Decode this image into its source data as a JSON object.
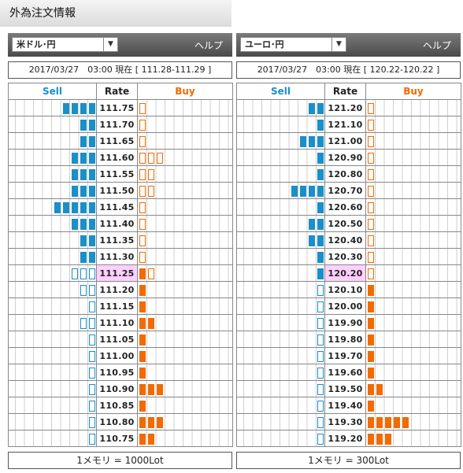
{
  "page_title": "外為注文情報",
  "colors": {
    "sell": "#1a8fc8",
    "buy": "#f26a00",
    "current_rate_bg": "#ffd0ff"
  },
  "panels": [
    {
      "pair": "米ドル･円",
      "help": "ヘルプ",
      "info": "2017/03/27　03:00 現在 [ 111.28-111.29 ]",
      "headers": {
        "sell": "Sell",
        "rate": "Rate",
        "buy": "Buy"
      },
      "current_rate": "111.25",
      "rows": [
        {
          "rate": "111.75",
          "sell": 4,
          "sell_open": 0,
          "buy": 0,
          "buy_open": 1
        },
        {
          "rate": "111.70",
          "sell": 2,
          "sell_open": 0,
          "buy": 0,
          "buy_open": 1
        },
        {
          "rate": "111.65",
          "sell": 2,
          "sell_open": 0,
          "buy": 0,
          "buy_open": 1
        },
        {
          "rate": "111.60",
          "sell": 3,
          "sell_open": 0,
          "buy": 0,
          "buy_open": 3
        },
        {
          "rate": "111.55",
          "sell": 3,
          "sell_open": 0,
          "buy": 0,
          "buy_open": 2
        },
        {
          "rate": "111.50",
          "sell": 3,
          "sell_open": 0,
          "buy": 0,
          "buy_open": 2
        },
        {
          "rate": "111.45",
          "sell": 5,
          "sell_open": 0,
          "buy": 0,
          "buy_open": 1
        },
        {
          "rate": "111.40",
          "sell": 3,
          "sell_open": 0,
          "buy": 0,
          "buy_open": 1
        },
        {
          "rate": "111.35",
          "sell": 2,
          "sell_open": 0,
          "buy": 0,
          "buy_open": 1
        },
        {
          "rate": "111.30",
          "sell": 2,
          "sell_open": 0,
          "buy": 0,
          "buy_open": 1
        },
        {
          "rate": "111.25",
          "sell": 0,
          "sell_open": 3,
          "buy": 1,
          "buy_open": 1
        },
        {
          "rate": "111.20",
          "sell": 0,
          "sell_open": 2,
          "buy": 1,
          "buy_open": 0
        },
        {
          "rate": "111.15",
          "sell": 0,
          "sell_open": 1,
          "buy": 1,
          "buy_open": 0
        },
        {
          "rate": "111.10",
          "sell": 0,
          "sell_open": 2,
          "buy": 2,
          "buy_open": 0
        },
        {
          "rate": "111.05",
          "sell": 0,
          "sell_open": 1,
          "buy": 1,
          "buy_open": 0
        },
        {
          "rate": "111.00",
          "sell": 0,
          "sell_open": 1,
          "buy": 1,
          "buy_open": 0
        },
        {
          "rate": "110.95",
          "sell": 0,
          "sell_open": 1,
          "buy": 1,
          "buy_open": 0
        },
        {
          "rate": "110.90",
          "sell": 0,
          "sell_open": 1,
          "buy": 3,
          "buy_open": 0
        },
        {
          "rate": "110.85",
          "sell": 0,
          "sell_open": 1,
          "buy": 1,
          "buy_open": 0
        },
        {
          "rate": "110.80",
          "sell": 0,
          "sell_open": 1,
          "buy": 3,
          "buy_open": 0
        },
        {
          "rate": "110.75",
          "sell": 0,
          "sell_open": 1,
          "buy": 2,
          "buy_open": 0
        }
      ],
      "footer": "1メモリ = 1000Lot"
    },
    {
      "pair": "ユーロ･円",
      "help": "ヘルプ",
      "info": "2017/03/27　03:00 現在 [ 120.22-120.22 ]",
      "headers": {
        "sell": "Sell",
        "rate": "Rate",
        "buy": "Buy"
      },
      "current_rate": "120.20",
      "rows": [
        {
          "rate": "121.20",
          "sell": 2,
          "sell_open": 0,
          "buy": 0,
          "buy_open": 1
        },
        {
          "rate": "121.10",
          "sell": 1,
          "sell_open": 0,
          "buy": 0,
          "buy_open": 1
        },
        {
          "rate": "121.00",
          "sell": 3,
          "sell_open": 0,
          "buy": 0,
          "buy_open": 1
        },
        {
          "rate": "120.90",
          "sell": 1,
          "sell_open": 0,
          "buy": 0,
          "buy_open": 1
        },
        {
          "rate": "120.80",
          "sell": 1,
          "sell_open": 0,
          "buy": 0,
          "buy_open": 1
        },
        {
          "rate": "120.70",
          "sell": 4,
          "sell_open": 0,
          "buy": 0,
          "buy_open": 1
        },
        {
          "rate": "120.60",
          "sell": 1,
          "sell_open": 0,
          "buy": 0,
          "buy_open": 1
        },
        {
          "rate": "120.50",
          "sell": 2,
          "sell_open": 0,
          "buy": 0,
          "buy_open": 1
        },
        {
          "rate": "120.40",
          "sell": 2,
          "sell_open": 0,
          "buy": 0,
          "buy_open": 1
        },
        {
          "rate": "120.30",
          "sell": 1,
          "sell_open": 0,
          "buy": 0,
          "buy_open": 1
        },
        {
          "rate": "120.20",
          "sell": 1,
          "sell_open": 0,
          "buy": 0,
          "buy_open": 1
        },
        {
          "rate": "120.10",
          "sell": 0,
          "sell_open": 1,
          "buy": 1,
          "buy_open": 0
        },
        {
          "rate": "120.00",
          "sell": 0,
          "sell_open": 1,
          "buy": 1,
          "buy_open": 0
        },
        {
          "rate": "119.90",
          "sell": 0,
          "sell_open": 1,
          "buy": 1,
          "buy_open": 0
        },
        {
          "rate": "119.80",
          "sell": 0,
          "sell_open": 1,
          "buy": 1,
          "buy_open": 0
        },
        {
          "rate": "119.70",
          "sell": 0,
          "sell_open": 1,
          "buy": 1,
          "buy_open": 0
        },
        {
          "rate": "119.60",
          "sell": 0,
          "sell_open": 1,
          "buy": 1,
          "buy_open": 0
        },
        {
          "rate": "119.50",
          "sell": 0,
          "sell_open": 1,
          "buy": 2,
          "buy_open": 0
        },
        {
          "rate": "119.40",
          "sell": 0,
          "sell_open": 1,
          "buy": 1,
          "buy_open": 0
        },
        {
          "rate": "119.30",
          "sell": 0,
          "sell_open": 1,
          "buy": 5,
          "buy_open": 0
        },
        {
          "rate": "119.20",
          "sell": 0,
          "sell_open": 1,
          "buy": 3,
          "buy_open": 0
        }
      ],
      "footer": "1メモリ = 300Lot"
    }
  ]
}
